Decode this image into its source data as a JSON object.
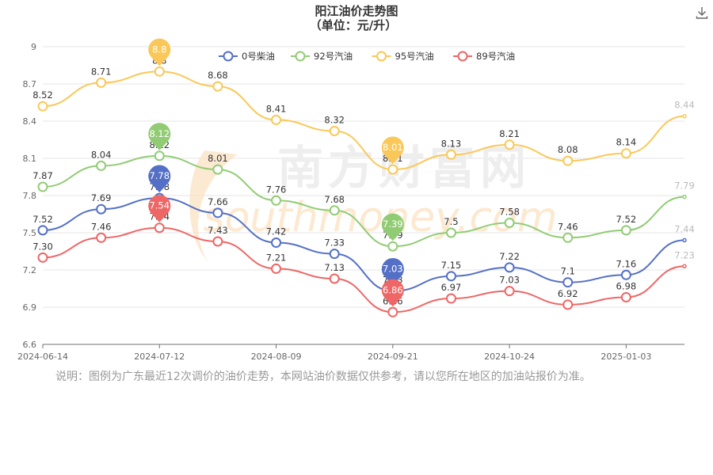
{
  "chart_data": {
    "type": "line",
    "title": "阳江油价走势图",
    "subtitle": "（单位：元/升）",
    "ylim": [
      6.6,
      9.0
    ],
    "yticks": [
      "6.6",
      "6.9",
      "7.2",
      "7.5",
      "7.8",
      "8.1",
      "8.4",
      "8.7",
      "9"
    ],
    "x_tick_labels": [
      "2024-06-14",
      "2024-07-12",
      "2024-08-09",
      "2024-09-21",
      "2024-10-24",
      "2025-01-03"
    ],
    "grid": true,
    "legend_position": "top",
    "series": [
      {
        "name": "0号柴油",
        "color": "#5470c6",
        "values": [
          7.52,
          7.69,
          7.78,
          7.66,
          7.42,
          7.33,
          7.03,
          7.15,
          7.22,
          7.1,
          7.16,
          7.44
        ],
        "labels": [
          "7.52",
          "7.69",
          "7.78",
          "7.66",
          "7.42",
          "7.33",
          "7.03",
          "7.15",
          "7.22",
          "7.1",
          "7.16",
          "7.44"
        ],
        "max_pin": "7.78",
        "min_pin": "7.03"
      },
      {
        "name": "92号汽油",
        "color": "#91cc75",
        "values": [
          7.87,
          8.04,
          8.12,
          8.01,
          7.76,
          7.68,
          7.39,
          7.5,
          7.58,
          7.46,
          7.52,
          7.79
        ],
        "labels": [
          "7.87",
          "8.04",
          "8.12",
          "8.01",
          "7.76",
          "7.68",
          "7.39",
          "7.5",
          "7.58",
          "7.46",
          "7.52",
          "7.79"
        ],
        "max_pin": "8.12",
        "min_pin": "7.39"
      },
      {
        "name": "95号汽油",
        "color": "#fac858",
        "values": [
          8.52,
          8.71,
          8.8,
          8.68,
          8.41,
          8.32,
          8.01,
          8.13,
          8.21,
          8.08,
          8.14,
          8.44
        ],
        "labels": [
          "8.52",
          "8.71",
          "8.8",
          "8.68",
          "8.41",
          "8.32",
          "8.01",
          "8.13",
          "8.21",
          "8.08",
          "8.14",
          "8.44"
        ],
        "max_pin": "8.8",
        "min_pin": "8.01"
      },
      {
        "name": "89号汽油",
        "color": "#ee6666",
        "values": [
          7.3,
          7.46,
          7.54,
          7.43,
          7.21,
          7.13,
          6.86,
          6.97,
          7.03,
          6.92,
          6.98,
          7.23
        ],
        "labels": [
          "7.30",
          "7.46",
          "7.54",
          "7.43",
          "7.21",
          "7.13",
          "6.86",
          "6.97",
          "7.03",
          "6.92",
          "6.98",
          "7.23"
        ],
        "max_pin": "7.54",
        "min_pin": "6.86"
      }
    ]
  },
  "watermark": {
    "cn": "南方财富网",
    "en": "southmoney.com"
  },
  "note": "说明：图例为广东最近12次调价的油价走势，本网站油价数据仅供参考，请以您所在地区的加油站报价为准。",
  "download_icon": "download-icon"
}
